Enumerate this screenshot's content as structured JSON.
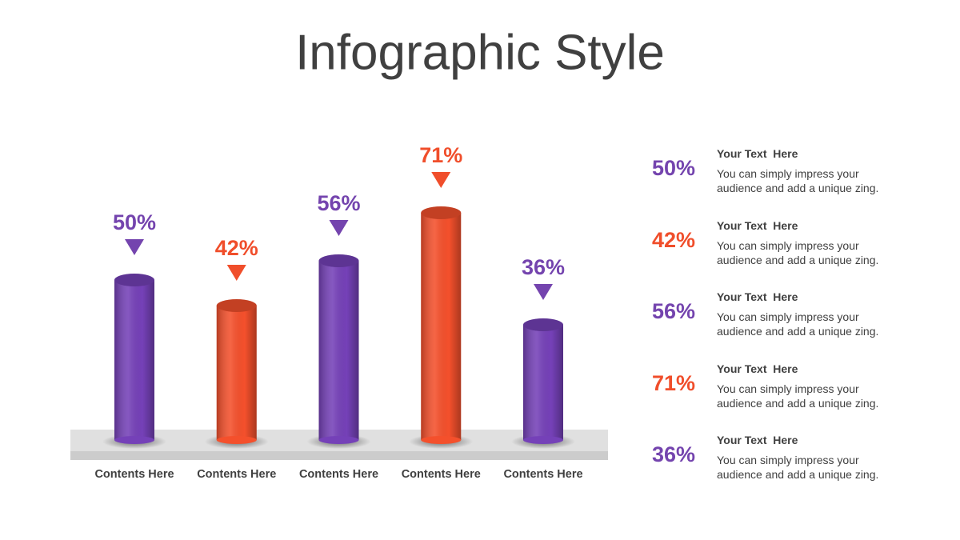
{
  "chart_data": {
    "type": "bar",
    "title": "Infographic Style",
    "categories": [
      "Contents Here",
      "Contents Here",
      "Contents Here",
      "Contents Here",
      "Contents Here"
    ],
    "values": [
      50,
      42,
      56,
      71,
      36
    ],
    "value_labels": [
      "50%",
      "42%",
      "56%",
      "71%",
      "36%"
    ],
    "colors": [
      "#7541b8",
      "#f4502c",
      "#7541b8",
      "#f4502c",
      "#7541b8"
    ],
    "label_colors": [
      "#7444ae",
      "#f04e2b",
      "#7444ae",
      "#f04e2b",
      "#7444ae"
    ],
    "side_notes": [
      {
        "heading": "Your Text  Here",
        "text": "You can simply impress your audience and add a unique zing."
      },
      {
        "heading": "Your Text  Here",
        "text": "You can simply impress your audience and add a unique zing."
      },
      {
        "heading": "Your Text  Here",
        "text": "You can simply impress your audience and add a unique zing."
      },
      {
        "heading": "Your Text  Here",
        "text": "You can simply impress your audience and add a unique zing."
      },
      {
        "heading": "Your Text  Here",
        "text": "You can simply impress your audience and add a unique zing."
      }
    ]
  }
}
